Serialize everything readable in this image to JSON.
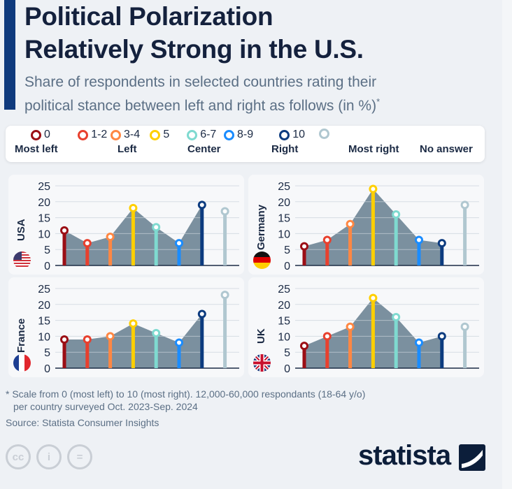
{
  "header": {
    "title_line1": "Political Polarization",
    "title_line2": "Relatively Strong in the U.S.",
    "subtitle_line1": "Share of respondents in selected countries rating their",
    "subtitle_line2": "political stance between left and right as follows (in %)",
    "subtitle_mark": "*"
  },
  "legend": {
    "items": [
      {
        "label": "0",
        "color": "#9b0e15"
      },
      {
        "label": "1-2",
        "color": "#e8402e"
      },
      {
        "label": "3-4",
        "color": "#ff8743"
      },
      {
        "label": "5",
        "color": "#ffcf00"
      },
      {
        "label": "6-7",
        "color": "#7fdad0"
      },
      {
        "label": "8-9",
        "color": "#1a8cff"
      },
      {
        "label": "10",
        "color": "#0c3b7f"
      },
      {
        "label": "",
        "color": "#b0c7d0"
      }
    ],
    "groups": [
      "Most left",
      "Left",
      "Center",
      "Right",
      "Most right",
      "No answer"
    ]
  },
  "chart_data": [
    {
      "type": "line",
      "title": "USA",
      "categories": [
        "0",
        "1-2",
        "3-4",
        "5",
        "6-7",
        "8-9",
        "10",
        "No answer"
      ],
      "values": [
        11,
        7,
        9,
        18,
        12,
        7,
        19,
        17
      ],
      "ylim": [
        0,
        25
      ],
      "yticks": [
        "0",
        "5",
        "10",
        "15",
        "20",
        "25"
      ]
    },
    {
      "type": "line",
      "title": "Germany",
      "categories": [
        "0",
        "1-2",
        "3-4",
        "5",
        "6-7",
        "8-9",
        "10",
        "No answer"
      ],
      "values": [
        6,
        8,
        13,
        24,
        16,
        8,
        7,
        19
      ],
      "ylim": [
        0,
        25
      ],
      "yticks": [
        "0",
        "5",
        "10",
        "15",
        "20",
        "25"
      ]
    },
    {
      "type": "line",
      "title": "France",
      "categories": [
        "0",
        "1-2",
        "3-4",
        "5",
        "6-7",
        "8-9",
        "10",
        "No answer"
      ],
      "values": [
        9,
        9,
        10,
        14,
        11,
        8,
        17,
        23
      ],
      "ylim": [
        0,
        25
      ],
      "yticks": [
        "0",
        "5",
        "10",
        "15",
        "20",
        "25"
      ]
    },
    {
      "type": "line",
      "title": "UK",
      "categories": [
        "0",
        "1-2",
        "3-4",
        "5",
        "6-7",
        "8-9",
        "10",
        "No answer"
      ],
      "values": [
        7,
        10,
        13,
        22,
        16,
        8,
        10,
        13
      ],
      "ylim": [
        0,
        25
      ],
      "yticks": [
        "0",
        "5",
        "10",
        "15",
        "20",
        "25"
      ]
    }
  ],
  "footer": {
    "note_line1": "* Scale from 0 (most left) to 10 (most right). 12,000-60,000 respondants (18-64 y/o)",
    "note_line2": "per country surveyed Oct. 2023-Sep. 2024",
    "source": "Source: Statista Consumer Insights",
    "logo": "statista"
  },
  "colors": {
    "area": "#7b909f",
    "accent": "#0f3a7d"
  }
}
